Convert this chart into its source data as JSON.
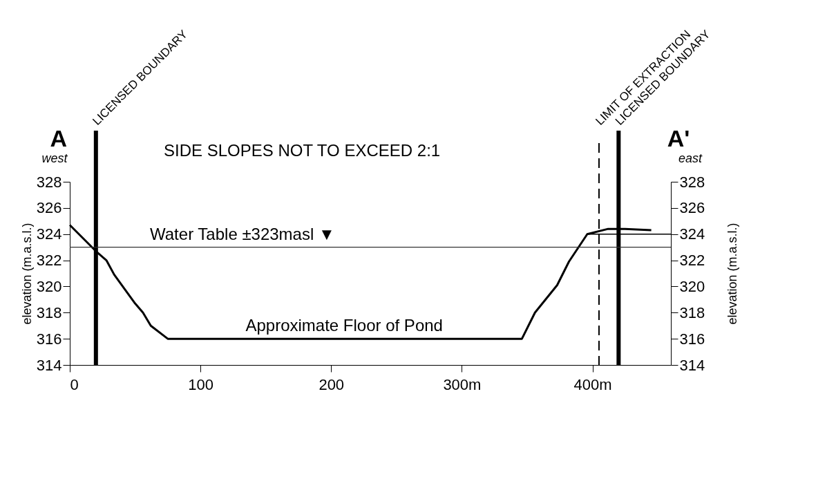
{
  "chart_data": {
    "type": "line",
    "series": [
      {
        "color": "#000000",
        "x": [
          0,
          21,
          28,
          34,
          50,
          56,
          62,
          75,
          346,
          356,
          373,
          382,
          396,
          412,
          425,
          445
        ],
        "values": [
          324.7,
          322.6,
          322.0,
          320.9,
          318.7,
          318.0,
          317.0,
          316.0,
          316.0,
          318.0,
          320.1,
          321.9,
          324.0,
          324.4,
          324.4,
          324.3
        ]
      },
      {
        "color": "#000000",
        "axis": "y2",
        "x": [
          396,
          460
        ],
        "values": [
          324,
          324
        ]
      }
    ],
    "xlim": [
      0,
      460
    ],
    "xticks": [
      0,
      100,
      200,
      {
        "value": 300,
        "label": "300m"
      },
      {
        "value": 400,
        "label": "400m"
      }
    ],
    "ylim": [
      314,
      328
    ],
    "yticks": [
      314,
      316,
      318,
      320,
      322,
      324,
      326,
      328
    ],
    "y2lim": [
      314,
      328
    ],
    "y2ticks": [
      314,
      316,
      318,
      320,
      322,
      324,
      326,
      328
    ],
    "ylabel": "elevation (m.a.s.l.)",
    "y2label": "elevation (m.a.s.l.)",
    "ref_lines": [
      {
        "axis": "x",
        "value": 20,
        "label": "LICENSED BOUNDARY",
        "color": "#000000"
      },
      {
        "axis": "x",
        "value": 405,
        "label": "LIMIT OF EXTRACTION",
        "color": "#000000",
        "line_style": "dashed"
      },
      {
        "axis": "x",
        "value": 420,
        "label": "LICENSED BOUNDARY",
        "color": "#000000"
      },
      {
        "axis": "y",
        "value": 323,
        "label": "Water Table ±323masl ▼",
        "color": "#333333"
      }
    ],
    "annotations": [
      "A",
      "west",
      "A'",
      "east",
      "SIDE SLOPES NOT TO EXCEED 2:1",
      {
        "text": "Approximate Floor of Pond",
        "x": 210,
        "y": 316
      }
    ],
    "grid": false,
    "marker": "none",
    "line_style": "solid"
  }
}
